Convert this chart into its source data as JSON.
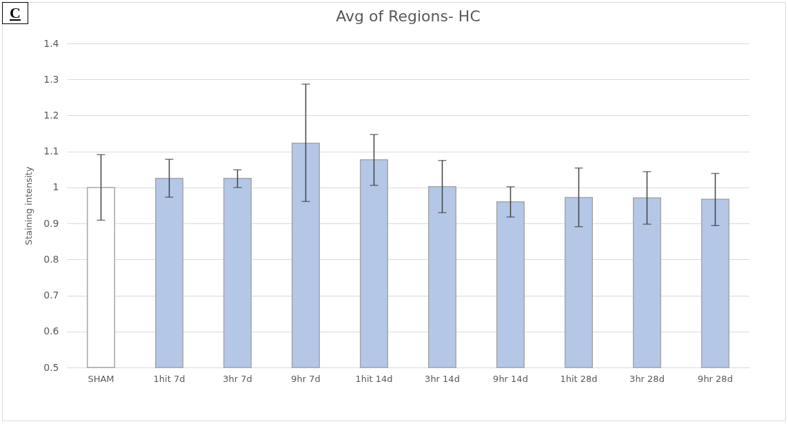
{
  "chart_data": {
    "type": "bar",
    "title": "Avg of Regions- HC",
    "ylabel": "Staining intensity",
    "categories": [
      "SHAM",
      "1hit 7d",
      "3hr 7d",
      "9hr 7d",
      "1hit 14d",
      "3hr 14d",
      "9hr 14d",
      "1hit 28d",
      "3hr 28d",
      "9hr 28d"
    ],
    "values": [
      1.0,
      1.025,
      1.025,
      1.123,
      1.077,
      1.002,
      0.96,
      0.972,
      0.971,
      0.967
    ],
    "colors": [
      "#ffffff",
      "#b4c7e7",
      "#b4c7e7",
      "#b4c7e7",
      "#b4c7e7",
      "#b4c7e7",
      "#b4c7e7",
      "#b4c7e7",
      "#b4c7e7",
      "#b4c7e7"
    ],
    "errors": [
      [
        0.909,
        1.091
      ],
      [
        0.973,
        1.078
      ],
      [
        1.0,
        1.049
      ],
      [
        0.961,
        1.287
      ],
      [
        1.006,
        1.147
      ],
      [
        0.93,
        1.075
      ],
      [
        0.918,
        1.002
      ],
      [
        0.891,
        1.054
      ],
      [
        0.898,
        1.044
      ],
      [
        0.894,
        1.039
      ]
    ],
    "ylim": [
      0.5,
      1.4
    ],
    "yticks": [
      0.5,
      0.6,
      0.7,
      0.8,
      0.9,
      1,
      1.1,
      1.2,
      1.3,
      1.4
    ],
    "grid": "y",
    "annotations": [
      "C"
    ]
  }
}
